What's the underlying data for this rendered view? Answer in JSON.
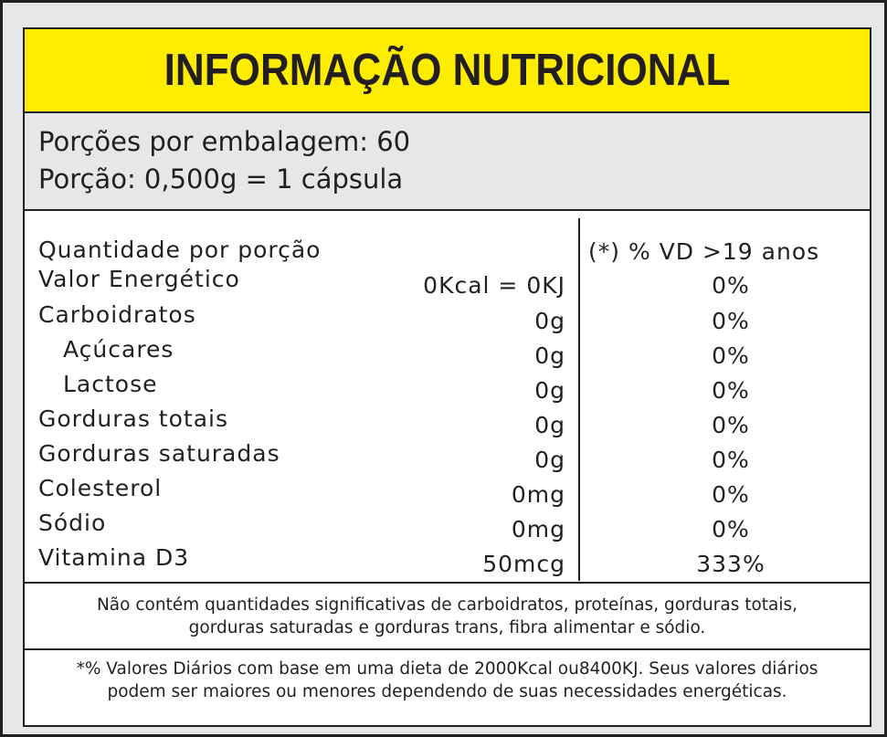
{
  "header": {
    "title": "INFORMAÇÃO NUTRICIONAL"
  },
  "serving": {
    "per_package": "Porções por embalagem: 60",
    "portion": "Porção: 0,500g = 1 cápsula"
  },
  "table": {
    "col_name_header": "Quantidade por porção",
    "col_vd_header": "(*) % VD  >19 anos",
    "rows": [
      {
        "name": "Valor Energético",
        "qty": "0Kcal = 0KJ",
        "vd": "0%"
      },
      {
        "name": "Carboidratos",
        "qty": "0g",
        "vd": "0%"
      },
      {
        "name": "Açúcares",
        "qty": "0g",
        "vd": "0%"
      },
      {
        "name": "Lactose",
        "qty": "0g",
        "vd": "0%"
      },
      {
        "name": "Gorduras totais",
        "qty": "0g",
        "vd": "0%"
      },
      {
        "name": "Gorduras saturadas",
        "qty": "0g",
        "vd": "0%"
      },
      {
        "name": "Colesterol",
        "qty": "0mg",
        "vd": "0%"
      },
      {
        "name": "Sódio",
        "qty": "0mg",
        "vd": "0%"
      },
      {
        "name": "Vitamina D3",
        "qty": "50mcg",
        "vd": "333%"
      }
    ]
  },
  "note": {
    "line1": "Não contém quantidades significativas de carboidratos, proteínas, gorduras totais,",
    "line2": "gorduras saturadas e gorduras trans, fibra alimentar e sódio."
  },
  "footnote": {
    "line1": "*% Valores Diários com base em uma dieta de 2000Kcal ou8400KJ. Seus valores diários",
    "line2": "podem ser maiores ou menores dependendo de suas necessidades energéticas."
  },
  "colors": {
    "header_bg": "#ffed00",
    "panel_bg": "#e6e7e9",
    "text": "#231f20"
  }
}
